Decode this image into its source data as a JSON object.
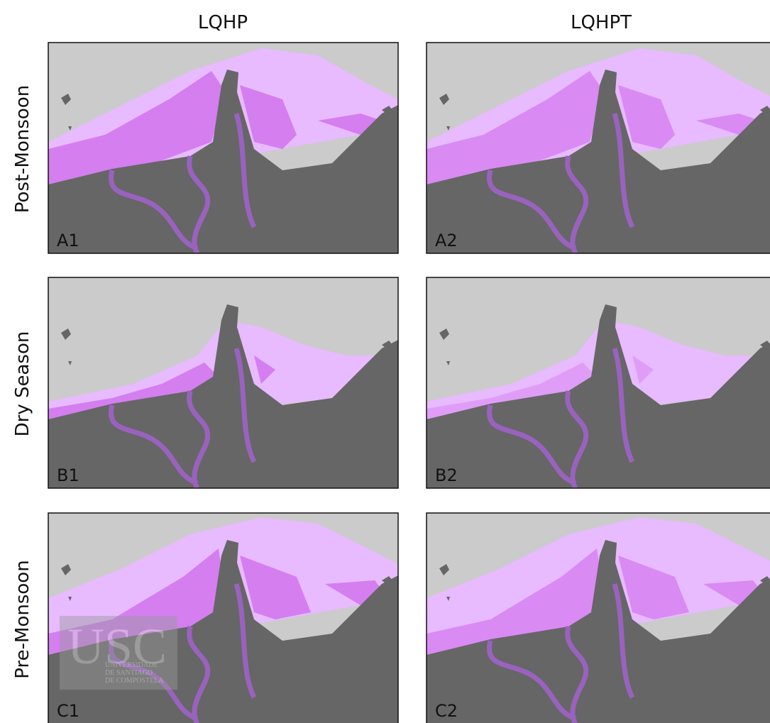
{
  "columns": [
    "LQHP",
    "LQHPT"
  ],
  "rows": [
    "Post-Monsoon",
    "Dry Season",
    "Pre-Monsoon"
  ],
  "panels": [
    [
      "A1",
      "A2"
    ],
    [
      "B1",
      "B2"
    ],
    [
      "C1",
      "C2"
    ]
  ],
  "watermark": {
    "logo": "USC",
    "lines": [
      "UNIVERSIDADE",
      "DE SANTIAGO",
      "DE COMPOSTELA"
    ]
  }
}
